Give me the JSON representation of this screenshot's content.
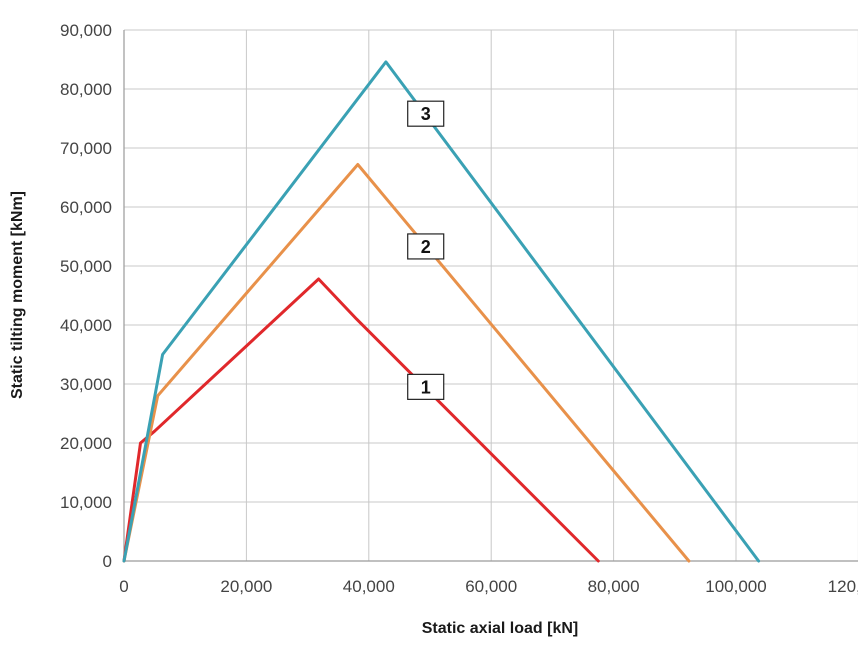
{
  "chart_data": {
    "type": "line",
    "title": "",
    "xlabel": "Static axial load [kN]",
    "ylabel": "Static tilting moment [kNm]",
    "xlim": [
      0,
      120000
    ],
    "ylim": [
      0,
      90000
    ],
    "xticks": [
      0,
      20000,
      40000,
      60000,
      80000,
      100000,
      120000
    ],
    "yticks": [
      0,
      10000,
      20000,
      30000,
      40000,
      50000,
      60000,
      70000,
      80000,
      90000
    ],
    "xtick_labels": [
      "0",
      "20,000",
      "40,000",
      "60,000",
      "80,000",
      "100,000",
      "120,000"
    ],
    "ytick_labels": [
      "0",
      "10,000",
      "20,000",
      "30,000",
      "40,000",
      "50,000",
      "60,000",
      "70,000",
      "80,000",
      "90,000"
    ],
    "grid": true,
    "series": [
      {
        "name": "1",
        "color": "#e0282b",
        "points": [
          [
            0,
            0
          ],
          [
            2700,
            20000
          ],
          [
            5000,
            22000
          ],
          [
            31800,
            47800
          ],
          [
            38000,
            41000
          ],
          [
            77500,
            0
          ]
        ],
        "label_at": [
          49300,
          29600
        ]
      },
      {
        "name": "2",
        "color": "#e8914a",
        "points": [
          [
            0,
            0
          ],
          [
            5500,
            28000
          ],
          [
            38200,
            67200
          ],
          [
            92300,
            0
          ]
        ],
        "label_at": [
          49300,
          53400
        ]
      },
      {
        "name": "3",
        "color": "#3aa1b4",
        "points": [
          [
            0,
            0
          ],
          [
            6300,
            35000
          ],
          [
            42800,
            84600
          ],
          [
            103700,
            0
          ]
        ],
        "label_at": [
          49300,
          75900
        ]
      }
    ]
  }
}
